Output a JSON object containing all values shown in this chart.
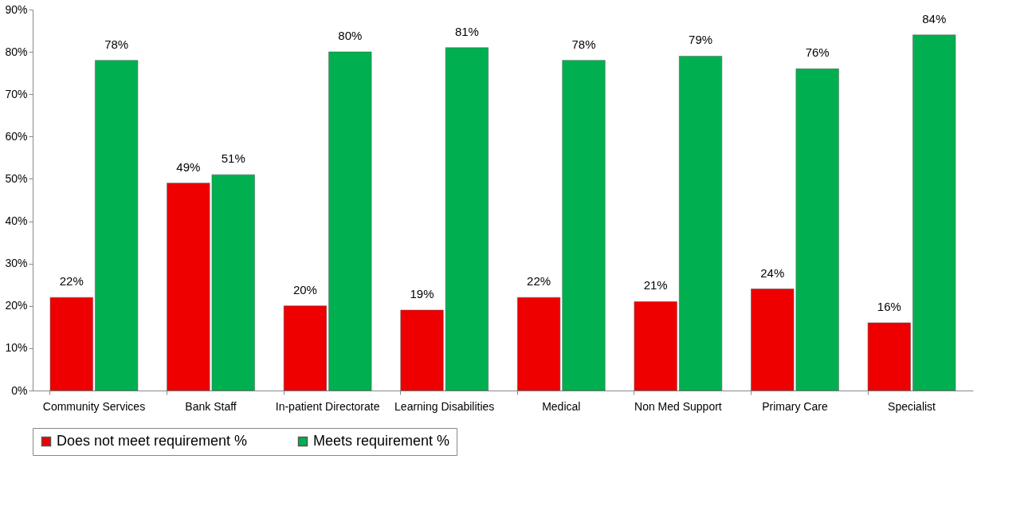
{
  "chart_data": {
    "type": "bar",
    "categories": [
      "Community Services",
      "Bank Staff",
      "In-patient Directorate",
      "Learning Disabilities",
      "Medical",
      "Non Med Support",
      "Primary Care",
      "Specialist"
    ],
    "series": [
      {
        "name": "Does not meet requirement %",
        "color": "#ee0000",
        "values": [
          22,
          49,
          20,
          19,
          22,
          21,
          24,
          16
        ],
        "value_labels": [
          "22%",
          "49%",
          "20%",
          "19%",
          "22%",
          "21%",
          "24%",
          "16%"
        ]
      },
      {
        "name": "Meets requirement %",
        "color": "#00b050",
        "values": [
          78,
          51,
          80,
          81,
          78,
          79,
          76,
          84
        ],
        "value_labels": [
          "78%",
          "51%",
          "80%",
          "81%",
          "78%",
          "79%",
          "76%",
          "84%"
        ]
      }
    ],
    "ylim": [
      0,
      90
    ],
    "yticks": [
      {
        "value": 0,
        "label": "0%"
      },
      {
        "value": 10,
        "label": "10%"
      },
      {
        "value": 20,
        "label": "20%"
      },
      {
        "value": 30,
        "label": "30%"
      },
      {
        "value": 40,
        "label": "40%"
      },
      {
        "value": 50,
        "label": "50%"
      },
      {
        "value": 60,
        "label": "60%"
      },
      {
        "value": 70,
        "label": "70%"
      },
      {
        "value": 80,
        "label": "80%"
      },
      {
        "value": 90,
        "label": "90%"
      }
    ],
    "grid": false,
    "legend": "bottom"
  }
}
